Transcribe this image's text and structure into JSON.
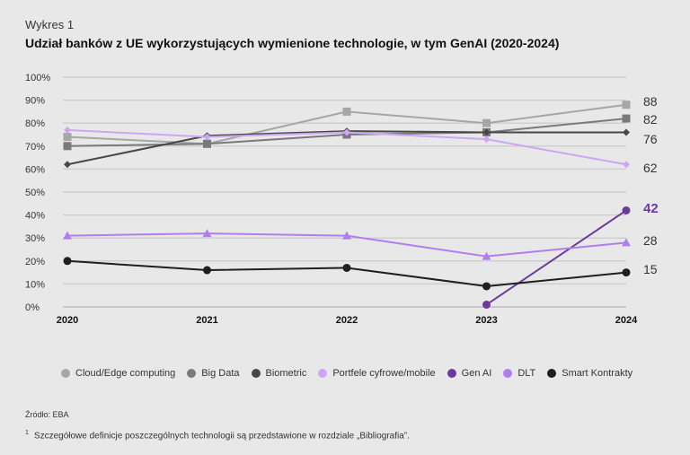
{
  "header": {
    "label": "Wykres 1",
    "title": "Udział banków z UE wykorzystujących wymienione technologie, w tym GenAI (2020-2024)"
  },
  "chart_data": {
    "type": "line",
    "title": "Udział banków z UE wykorzystujących wymienione technologie, w tym GenAI (2020-2024)",
    "categories": [
      "2020",
      "2021",
      "2022",
      "2023",
      "2024"
    ],
    "ylim": [
      0,
      100
    ],
    "yticks": [
      "0%",
      "10%",
      "20%",
      "30%",
      "40%",
      "50%",
      "60%",
      "70%",
      "80%",
      "90%",
      "100%"
    ],
    "grid": true,
    "legend_placement": "bottom",
    "series": [
      {
        "name": "Cloud/Edge computing",
        "color": "#a6a6a6",
        "marker": "square",
        "values": [
          74,
          71,
          85,
          80,
          88
        ],
        "end_label": "88"
      },
      {
        "name": "Big Data",
        "color": "#7a7a7a",
        "marker": "square",
        "values": [
          70,
          71,
          75,
          76,
          82
        ],
        "end_label": "82"
      },
      {
        "name": "Biometric",
        "color": "#474747",
        "marker": "diamond",
        "values": [
          62,
          74.5,
          76.5,
          76,
          76
        ],
        "end_label": "76"
      },
      {
        "name": "Portfele cyfrowe/mobile",
        "color": "#cda6f3",
        "marker": "diamond",
        "values": [
          77,
          74,
          76,
          73,
          62
        ],
        "end_label": "62"
      },
      {
        "name": "Gen AI",
        "color": "#6b3a9b",
        "marker": "circle",
        "values": [
          null,
          null,
          null,
          1,
          42
        ],
        "end_label": "42"
      },
      {
        "name": "DLT",
        "color": "#b07ef0",
        "marker": "triangle",
        "values": [
          31,
          32,
          31,
          22,
          28
        ],
        "end_label": "28"
      },
      {
        "name": "Smart Kontrakty",
        "color": "#1f1f1f",
        "marker": "circle",
        "values": [
          20,
          16,
          17,
          9,
          15
        ],
        "end_label": "15"
      }
    ]
  },
  "footer": {
    "source": "Źródło: EBA",
    "note_mark": "1",
    "note": "Szczegółowe definicje poszczególnych technologii są przedstawione w rozdziale „Bibliografia”."
  }
}
